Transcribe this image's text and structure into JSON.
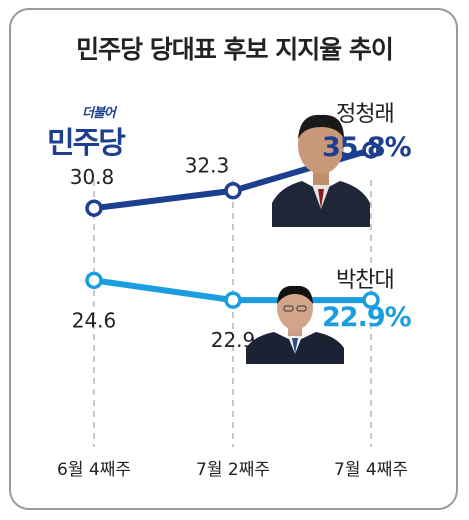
{
  "title": "민주당 당대표 후보 지지율 추이",
  "logo": {
    "small": "더불어",
    "big": "민주당"
  },
  "colors": {
    "dark": "#1d3f8f",
    "light": "#1a9ee0",
    "grid": "#c8c8c8"
  },
  "candidates": [
    {
      "name": "정청래",
      "latest": "35.8%"
    },
    {
      "name": "박찬대",
      "latest": "22.9%"
    }
  ],
  "chart_data": {
    "type": "line",
    "title": "민주당 당대표 후보 지지율 추이",
    "categories": [
      "6월 4째주",
      "7월 2째주",
      "7월 4째주"
    ],
    "series": [
      {
        "name": "정청래",
        "values": [
          30.8,
          32.3,
          35.8
        ],
        "labels": [
          "30.8",
          "32.3",
          ""
        ]
      },
      {
        "name": "박찬대",
        "values": [
          24.6,
          22.9,
          22.9
        ],
        "labels": [
          "24.6",
          "22.9",
          ""
        ]
      }
    ],
    "ylim": [
      18,
      40
    ],
    "grid": "vertical-dashed"
  }
}
